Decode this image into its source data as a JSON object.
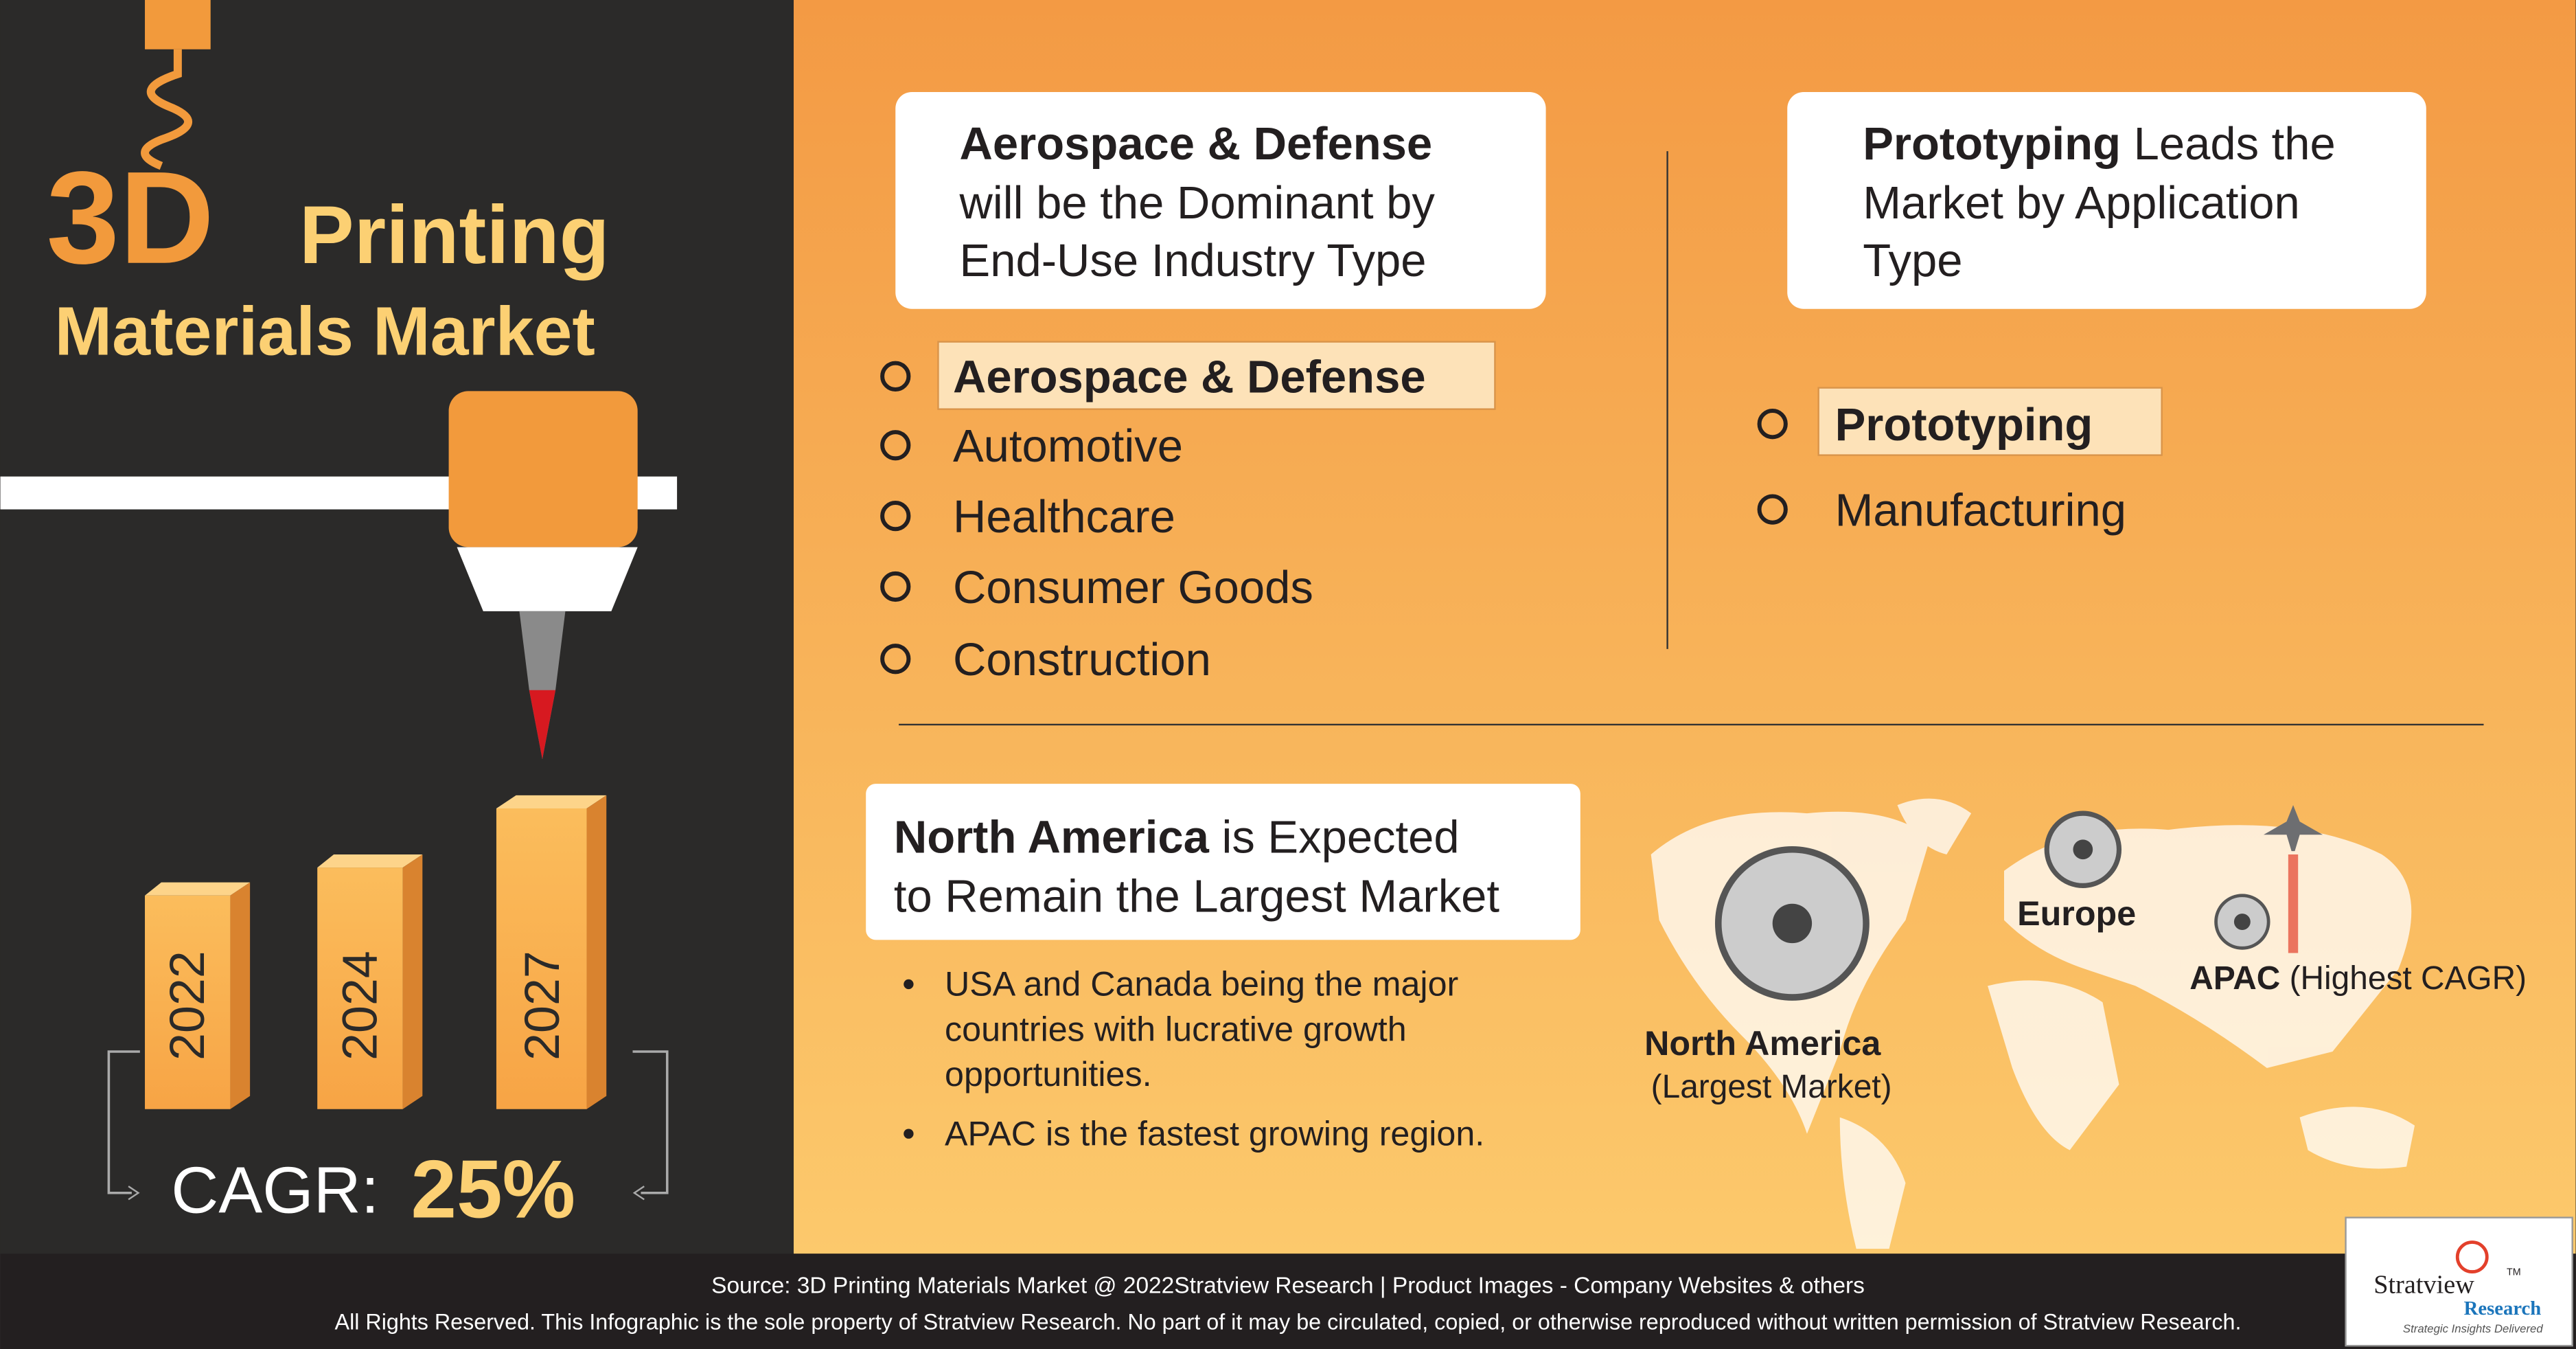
{
  "title": {
    "big": "3D",
    "rest": "Printing",
    "line2": "Materials Market"
  },
  "years": [
    "2022",
    "2024",
    "2027"
  ],
  "cagr": {
    "label": "CAGR:",
    "value": "25%"
  },
  "end_use": {
    "heading_bold": "Aerospace & Defense",
    "heading_lines": [
      "will be the Dominant by",
      "End-Use Industry Type"
    ],
    "items": [
      "Aerospace & Defense",
      "Automotive",
      "Healthcare",
      "Consumer Goods",
      "Construction"
    ]
  },
  "application": {
    "heading_bold": "Prototyping",
    "heading_rest": "Leads the",
    "heading_lines": [
      "Market by Application",
      "Type"
    ],
    "items": [
      "Prototyping",
      "Manufacturing"
    ]
  },
  "region": {
    "heading_bold": "North America",
    "heading_rest": "is Expected",
    "heading_line2": "to Remain the Largest Market",
    "bullets": [
      [
        "USA and Canada being the major",
        "countries with lucrative growth",
        "opportunities."
      ],
      [
        "APAC is the fastest growing region."
      ]
    ],
    "map": {
      "europe": "Europe",
      "apac": "APAC",
      "apac_note": "(Highest CAGR)",
      "na": "North America",
      "na_note": "(Largest Market)"
    }
  },
  "footer": {
    "source": "Source: 3D Printing Materials Market @ 2022Stratview Research | Product Images - Company Websites & others",
    "rights": "All Rights Reserved. This Infographic is the sole property of Stratview Research. No part of it may be circulated, copied, or otherwise reproduced without written permission of Stratview Research."
  },
  "logo": {
    "name": "Stratview",
    "tm": "TM",
    "sub": "Research",
    "tagline": "Strategic Insights Delivered"
  }
}
